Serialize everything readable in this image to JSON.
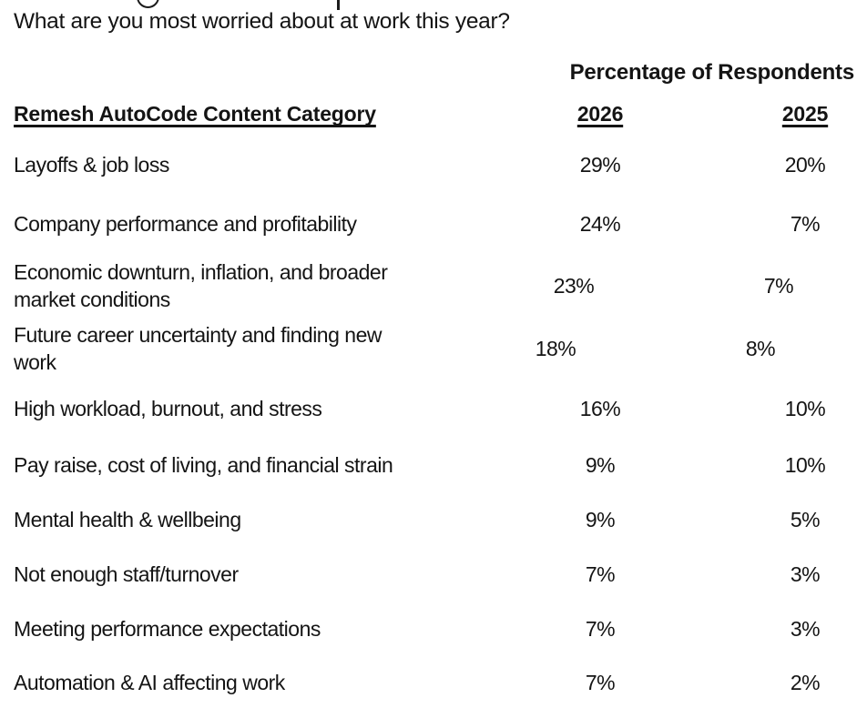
{
  "page": {
    "question": "What are you most worried about at work this year?"
  },
  "table": {
    "group_header": "Percentage of Respondents",
    "category_header": "Remesh AutoCode Content Category",
    "year_2026": "2026",
    "year_2025": "2025",
    "rows": [
      {
        "category": "Layoffs & job loss",
        "v2026": "29%",
        "v2025": "20%"
      },
      {
        "category": "Company performance and profitability",
        "v2026": "24%",
        "v2025": "7%"
      },
      {
        "category": "Economic downturn, inflation, and broader market conditions",
        "v2026": "23%",
        "v2025": "7%"
      },
      {
        "category": "Future career uncertainty and finding new work",
        "v2026": "18%",
        "v2025": "8%"
      },
      {
        "category": "High workload, burnout, and stress",
        "v2026": "16%",
        "v2025": "10%"
      },
      {
        "category": "Pay raise, cost of living, and financial strain",
        "v2026": "9%",
        "v2025": "10%"
      },
      {
        "category": "Mental health & wellbeing",
        "v2026": "9%",
        "v2025": "5%"
      },
      {
        "category": "Not enough staff/turnover",
        "v2026": "7%",
        "v2025": "3%"
      },
      {
        "category": "Meeting performance expectations",
        "v2026": "7%",
        "v2025": "3%"
      },
      {
        "category": "Automation & AI affecting work",
        "v2026": "7%",
        "v2025": "2%"
      }
    ]
  },
  "chart_data": {
    "type": "table",
    "title": "What are you most worried about at work this year?",
    "group_header": "Percentage of Respondents",
    "columns": [
      "Remesh AutoCode Content Category",
      "2026",
      "2025"
    ],
    "categories": [
      "Layoffs & job loss",
      "Company performance and profitability",
      "Economic downturn, inflation, and broader market conditions",
      "Future career uncertainty and finding new work",
      "High workload, burnout, and stress",
      "Pay raise, cost of living, and financial strain",
      "Mental health & wellbeing",
      "Not enough staff/turnover",
      "Meeting performance expectations",
      "Automation & AI affecting work"
    ],
    "series": [
      {
        "name": "2026",
        "values": [
          29,
          24,
          23,
          18,
          16,
          9,
          9,
          7,
          7,
          7
        ]
      },
      {
        "name": "2025",
        "values": [
          20,
          7,
          7,
          8,
          10,
          10,
          5,
          3,
          3,
          2
        ]
      }
    ],
    "value_unit": "percent"
  },
  "colors": {
    "text": "#141414",
    "background": "#ffffff"
  }
}
